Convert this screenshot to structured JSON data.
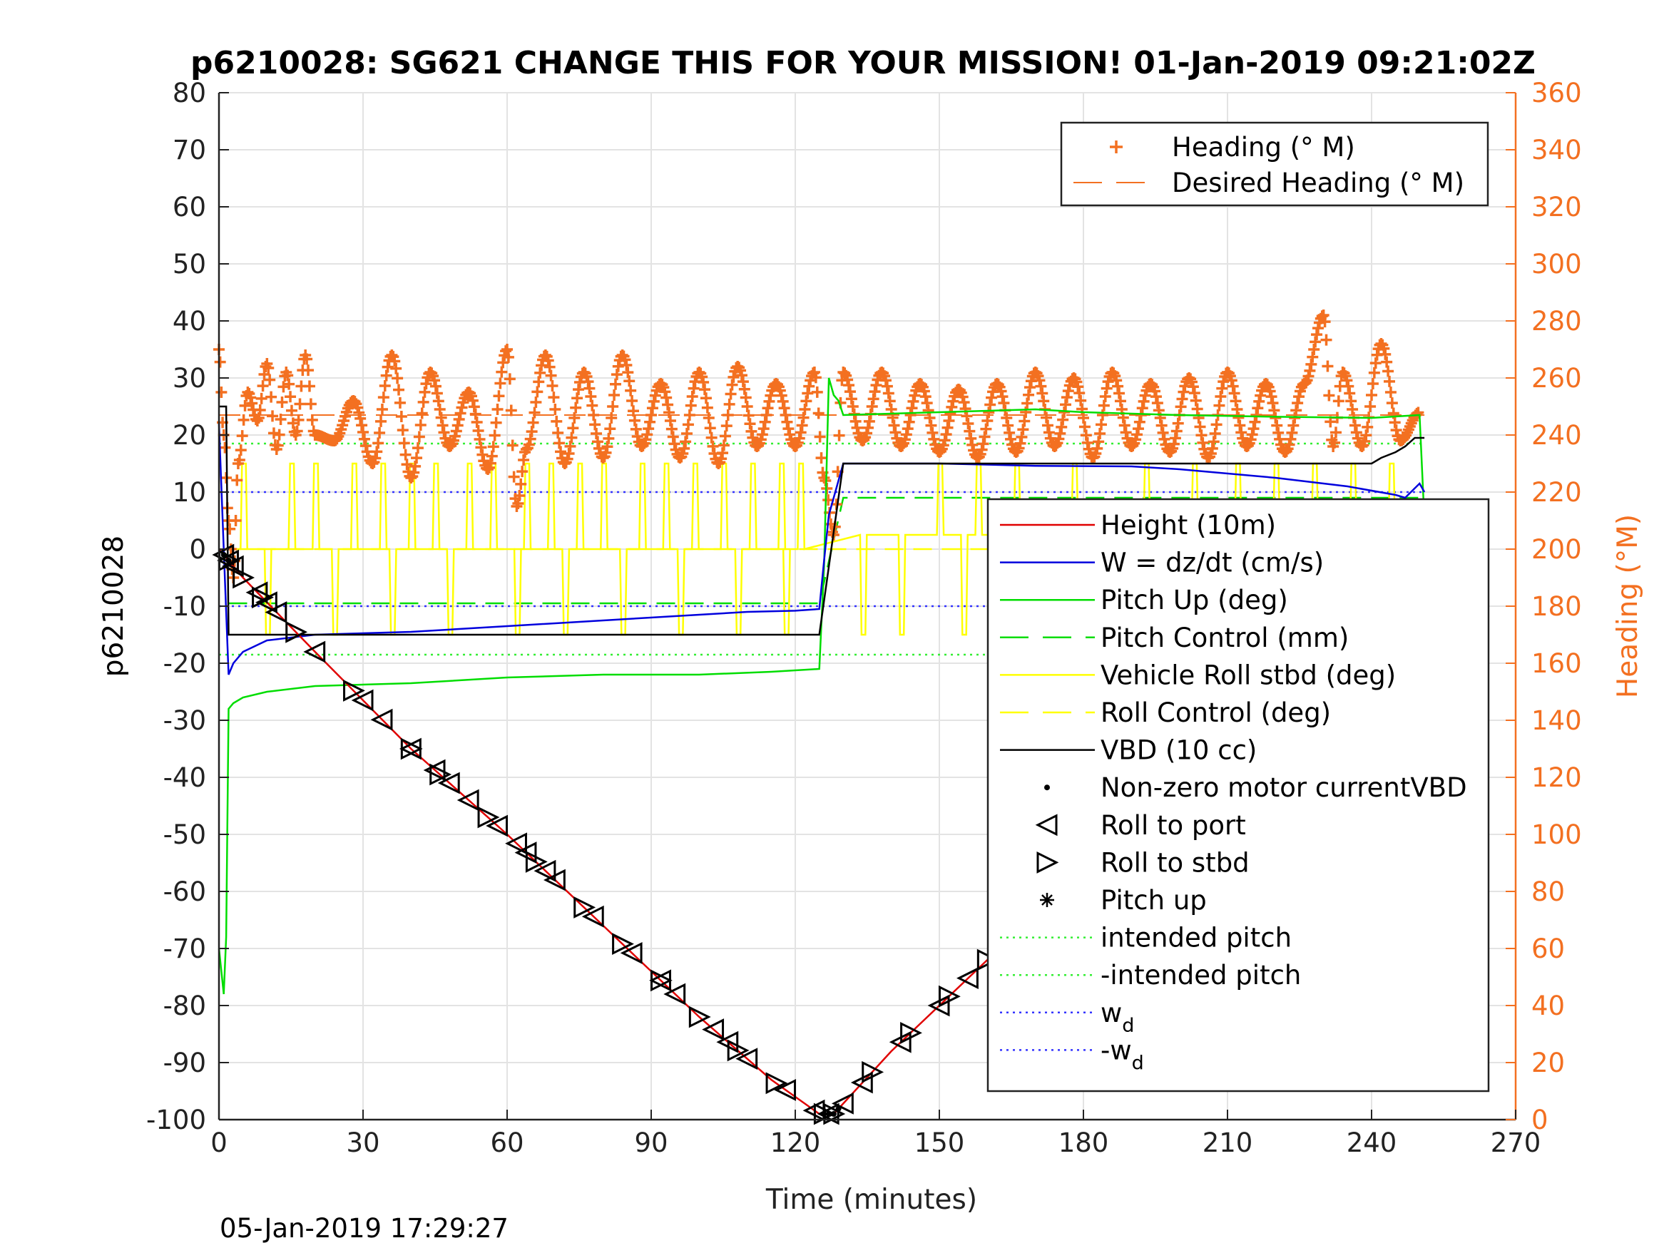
{
  "chart_data": {
    "type": "line",
    "title": "p6210028: SG621 CHANGE THIS FOR YOUR MISSION! 01-Jan-2019 09:21:02Z",
    "xlabel": "Time (minutes)",
    "ylabel": "p6210028",
    "y2label": "Heading (°M)",
    "footer_timestamp": "05-Jan-2019 17:29:27",
    "xlim": [
      0,
      270
    ],
    "ylim": [
      -100,
      80
    ],
    "y2lim": [
      0,
      360
    ],
    "xticks": [
      "0",
      "30",
      "60",
      "90",
      "120",
      "150",
      "180",
      "210",
      "240",
      "270"
    ],
    "yticks": [
      "80",
      "70",
      "60",
      "50",
      "40",
      "30",
      "20",
      "10",
      "0",
      "-10",
      "-20",
      "-30",
      "-40",
      "-50",
      "-60",
      "-70",
      "-80",
      "-90",
      "-100"
    ],
    "y2ticks": [
      "360",
      "340",
      "320",
      "300",
      "280",
      "260",
      "240",
      "220",
      "200",
      "180",
      "160",
      "140",
      "120",
      "100",
      "80",
      "60",
      "40",
      "20",
      "0"
    ],
    "grid": true,
    "colors": {
      "heading": "#f37021",
      "height": "#e00000",
      "w": "#0000dd",
      "pitch": "#00dd00",
      "roll": "#ffff00",
      "vbd": "#000000",
      "wd": "#3333ff",
      "intended": "#33ee33"
    },
    "legend_top": {
      "placement": "top-right",
      "entries": [
        "Heading (° M)",
        "Desired Heading (° M)"
      ]
    },
    "legend_main": {
      "placement": "lower-right",
      "entries": [
        {
          "label": "Height (10m)",
          "style": "line",
          "color": "#e00000"
        },
        {
          "label": "W = dz/dt (cm/s)",
          "style": "line",
          "color": "#0000dd"
        },
        {
          "label": "Pitch Up (deg)",
          "style": "line",
          "color": "#00dd00"
        },
        {
          "label": "Pitch Control (mm)",
          "style": "dash",
          "color": "#00dd00"
        },
        {
          "label": "Vehicle Roll stbd (deg)",
          "style": "line",
          "color": "#ffff00"
        },
        {
          "label": "Roll Control (deg)",
          "style": "dash",
          "color": "#ffff00"
        },
        {
          "label": "VBD (10 cc)",
          "style": "line",
          "color": "#000000"
        },
        {
          "label": "Non-zero motor currentVBD",
          "style": "dot",
          "color": "#000000"
        },
        {
          "label": "Roll to port",
          "style": "tri-left",
          "color": "#000000"
        },
        {
          "label": "Roll to stbd",
          "style": "tri-right",
          "color": "#000000"
        },
        {
          "label": "Pitch up",
          "style": "star",
          "color": "#000000"
        },
        {
          "label": "intended pitch",
          "style": "dotted",
          "color": "#33ee33"
        },
        {
          "label": "-intended pitch",
          "style": "dotted",
          "color": "#33ee33"
        },
        {
          "label": "w",
          "sub": "d",
          "style": "dotted",
          "color": "#3333ff"
        },
        {
          "label": "-w",
          "sub": "d",
          "style": "dotted",
          "color": "#3333ff"
        }
      ]
    },
    "series": [
      {
        "name": "Height (10m)",
        "axis": "left",
        "x": [
          0,
          5,
          20,
          40,
          60,
          80,
          100,
          115,
          125,
          128,
          140,
          160,
          180,
          200,
          220,
          240,
          251
        ],
        "y": [
          0,
          -5,
          -18,
          -35,
          -50,
          -66,
          -82,
          -93,
          -99,
          -99,
          -88,
          -72,
          -56,
          -38,
          -20,
          -5,
          0
        ]
      },
      {
        "name": "W = dz/dt (cm/s)",
        "axis": "left",
        "x": [
          0,
          1,
          2,
          3,
          5,
          10,
          20,
          40,
          60,
          80,
          100,
          110,
          120,
          125,
          126,
          127,
          130,
          150,
          170,
          190,
          200,
          220,
          235,
          245,
          247,
          250,
          251
        ],
        "y": [
          22,
          0,
          -22,
          -20,
          -18,
          -16,
          -15,
          -14.5,
          -13.5,
          -12.5,
          -11.5,
          -11,
          -10.8,
          -10.5,
          -2,
          6,
          15,
          15,
          14.6,
          14.5,
          14,
          12.5,
          11,
          9.5,
          9,
          11.5,
          10
        ]
      },
      {
        "name": "Pitch Up (deg)",
        "axis": "left",
        "x": [
          0,
          1,
          1.5,
          2,
          3,
          5,
          10,
          20,
          40,
          60,
          80,
          100,
          115,
          125,
          126,
          127,
          128,
          129,
          130,
          150,
          170,
          180,
          200,
          220,
          240,
          250,
          251
        ],
        "y": [
          -70,
          -78,
          -68,
          -28,
          -27,
          -26,
          -25,
          -24,
          -23.5,
          -22.5,
          -22,
          -22,
          -21.5,
          -21,
          -3,
          30,
          27,
          26,
          23.5,
          24,
          24.5,
          24,
          23.5,
          23.2,
          23,
          23.5,
          5
        ]
      },
      {
        "name": "VBD (10 cc)",
        "axis": "left",
        "x": [
          0,
          1.5,
          2,
          125,
          130,
          160,
          200,
          240,
          242,
          245,
          247,
          249,
          251
        ],
        "y": [
          25,
          25,
          -15,
          -15,
          15,
          15,
          15,
          15,
          16,
          17,
          18,
          19.5,
          19.5
        ]
      },
      {
        "name": "Pitch Control (mm)",
        "axis": "left",
        "x": [
          2,
          125,
          130,
          251
        ],
        "y": [
          -9.5,
          -9.5,
          9,
          9
        ]
      },
      {
        "name": "Roll Control (deg)",
        "axis": "left",
        "x": [
          2,
          125,
          130,
          251
        ],
        "y": [
          0,
          0,
          0,
          0
        ]
      },
      {
        "name": "Vehicle Roll stbd (deg)",
        "axis": "left",
        "baseline": [
          [
            2,
            0
          ],
          [
            125,
            0
          ],
          [
            130,
            2.5
          ],
          [
            251,
            2.5
          ]
        ],
        "spikes_up_x": [
          5,
          15,
          20,
          28,
          34,
          40,
          45,
          52,
          57,
          64,
          69,
          75,
          80,
          88,
          93,
          99,
          105,
          111,
          117,
          121,
          150,
          158,
          166,
          178,
          193,
          203,
          212,
          220,
          228,
          236,
          244
        ],
        "spikes_down_x": [
          10,
          24,
          36,
          48,
          62,
          72,
          84,
          96,
          108,
          118,
          134,
          142,
          155,
          170,
          182,
          200,
          210,
          226,
          240,
          249
        ],
        "spike_up_value": 15,
        "spike_down_value": -15
      },
      {
        "name": "Heading (° M)",
        "axis": "right",
        "marker": "+",
        "x": [
          0,
          1,
          2,
          3,
          4,
          6,
          8,
          10,
          12,
          14,
          16,
          18,
          20,
          24,
          28,
          32,
          36,
          40,
          44,
          48,
          52,
          56,
          60,
          62,
          64,
          68,
          72,
          76,
          80,
          84,
          88,
          92,
          96,
          100,
          104,
          108,
          112,
          116,
          120,
          124,
          126,
          128,
          130,
          134,
          138,
          142,
          146,
          150,
          154,
          158,
          162,
          166,
          170,
          174,
          178,
          182,
          186,
          190,
          194,
          198,
          202,
          206,
          210,
          214,
          218,
          222,
          226,
          230,
          232,
          234,
          238,
          242,
          246,
          250
        ],
        "y": [
          270,
          240,
          210,
          190,
          230,
          255,
          245,
          265,
          235,
          262,
          240,
          268,
          240,
          238,
          252,
          230,
          268,
          225,
          262,
          236,
          255,
          228,
          270,
          215,
          235,
          268,
          230,
          262,
          232,
          268,
          236,
          258,
          232,
          262,
          230,
          264,
          236,
          258,
          236,
          262,
          225,
          205,
          262,
          238,
          262,
          236,
          258,
          234,
          256,
          232,
          258,
          234,
          262,
          236,
          260,
          232,
          262,
          236,
          258,
          234,
          260,
          232,
          262,
          236,
          258,
          234,
          258,
          282,
          236,
          262,
          236,
          272,
          238,
          248
        ]
      },
      {
        "name": "Desired Heading (° M)",
        "axis": "right",
        "style": "dash",
        "x": [
          0,
          251
        ],
        "y": [
          247,
          247
        ]
      },
      {
        "name": "intended pitch",
        "axis": "left",
        "style": "dotted",
        "x": [
          0,
          251
        ],
        "y": [
          18.5,
          18.5
        ]
      },
      {
        "name": "-intended pitch",
        "axis": "left",
        "style": "dotted",
        "x": [
          0,
          251
        ],
        "y": [
          -18.5,
          -18.5
        ]
      },
      {
        "name": "w_d",
        "axis": "left",
        "style": "dotted",
        "x": [
          0,
          251
        ],
        "y": [
          10,
          10
        ]
      },
      {
        "name": "-w_d",
        "axis": "left",
        "style": "dotted",
        "x": [
          0,
          251
        ],
        "y": [
          -10,
          -10
        ]
      }
    ],
    "markers": {
      "roll_to_port": {
        "x": [
          1,
          2,
          3,
          8,
          10,
          12,
          20,
          30,
          34,
          40,
          45,
          48,
          52,
          58,
          62,
          64,
          68,
          70,
          78,
          86,
          92,
          95,
          103,
          106,
          110,
          118,
          124,
          127,
          130,
          134,
          142,
          150,
          156,
          166,
          171,
          175,
          182,
          190,
          202,
          208,
          214,
          220,
          228,
          234,
          240,
          248
        ],
        "y": "height"
      },
      "roll_to_stbd": {
        "x": [
          2,
          5,
          9,
          16,
          28,
          40,
          46,
          56,
          66,
          76,
          84,
          92,
          100,
          108,
          116,
          126,
          128,
          136,
          144,
          152,
          160,
          168,
          176,
          186,
          200,
          206,
          212,
          218,
          224,
          232,
          238,
          244,
          250
        ],
        "y": "height"
      },
      "vbd_current": {
        "x": [
          1,
          2,
          126,
          127,
          128,
          129
        ],
        "y": "height"
      }
    }
  }
}
